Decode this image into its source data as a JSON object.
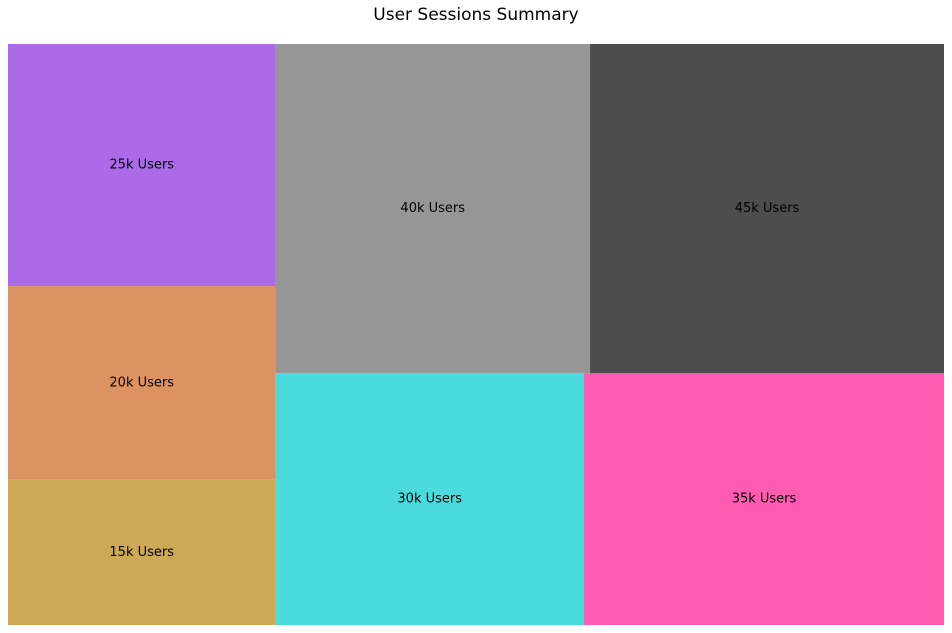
{
  "chart_data": {
    "type": "treemap",
    "title": "User Sessions Summary",
    "items": [
      {
        "label": "15k Users",
        "value": 15,
        "color": "#ccaa55"
      },
      {
        "label": "20k Users",
        "value": 20,
        "color": "#dd9361"
      },
      {
        "label": "25k Users",
        "value": 25,
        "color": "#ab6ae8"
      },
      {
        "label": "30k Users",
        "value": 30,
        "color": "#4adcdc"
      },
      {
        "label": "35k Users",
        "value": 35,
        "color": "#fe5cb2"
      },
      {
        "label": "40k Users",
        "value": 40,
        "color": "#969696"
      },
      {
        "label": "45k Users",
        "value": 45,
        "color": "#4d4d4d"
      }
    ]
  }
}
